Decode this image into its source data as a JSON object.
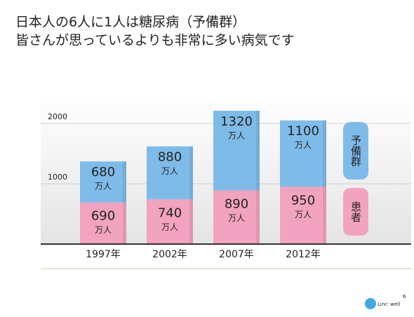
{
  "chart_data": {
    "type": "stacked-bar",
    "title": "日本人の6人に1人は糖尿病（予備群）",
    "subtitle": "皆さんが思っているよりも非常に多い病気です",
    "categories": [
      "1997年",
      "2002年",
      "2007年",
      "2012年"
    ],
    "unit": "万人",
    "series": [
      {
        "name": "患者",
        "color": "#f2a3bf",
        "values": [
          690,
          740,
          890,
          950
        ]
      },
      {
        "name": "予備群",
        "color": "#7fbbe8",
        "values": [
          680,
          880,
          1320,
          1100
        ]
      }
    ],
    "ylim": [
      0,
      2500
    ],
    "yticks": [
      1000,
      2000
    ],
    "grid": true
  },
  "footer": {
    "logo": "Linc' well",
    "page": "6"
  }
}
